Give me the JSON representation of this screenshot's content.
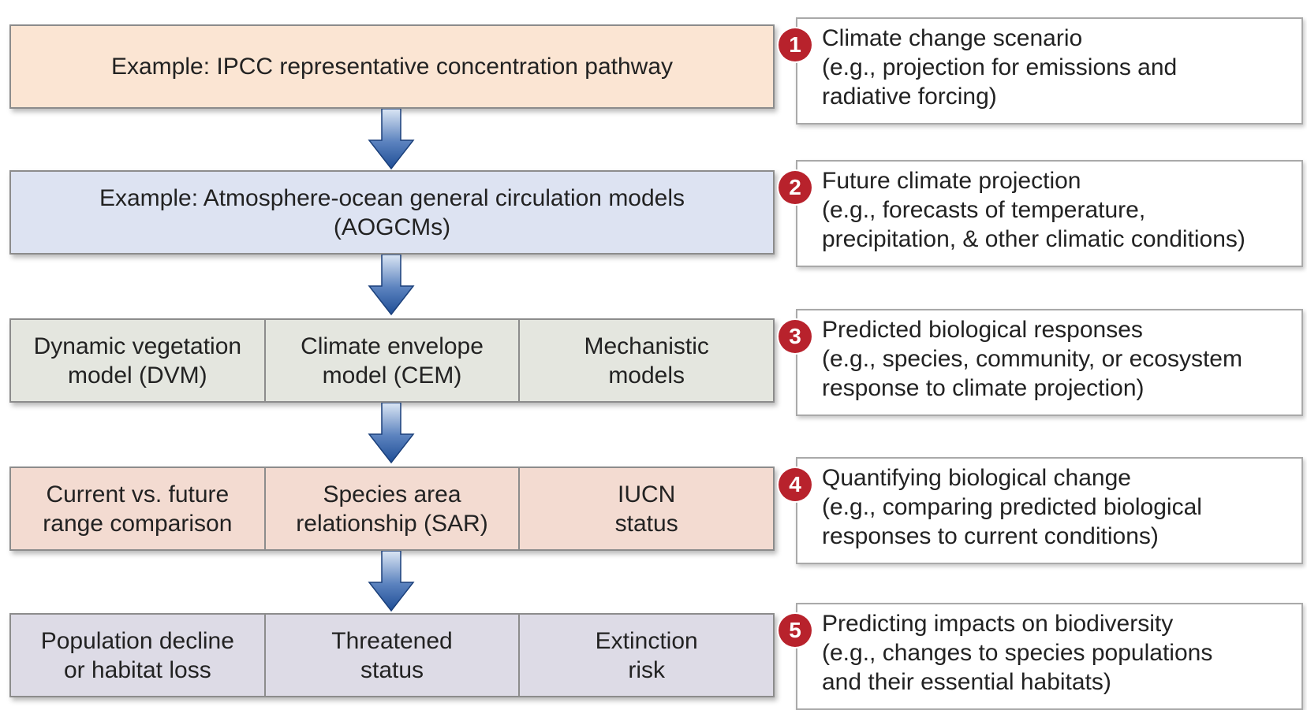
{
  "rows": [
    {
      "color": "#fbe5d3",
      "cells": [
        "Example: IPCC representative concentration pathway"
      ]
    },
    {
      "color": "#dde3f2",
      "cells": [
        "Example: Atmosphere-ocean general circulation models\n(AOGCMs)"
      ]
    },
    {
      "color": "#e4e6df",
      "cells": [
        "Dynamic vegetation\nmodel (DVM)",
        "Climate envelope\nmodel (CEM)",
        "Mechanistic\nmodels"
      ]
    },
    {
      "color": "#f3dbd1",
      "cells": [
        "Current vs. future\nrange comparison",
        "Species area\nrelationship (SAR)",
        "IUCN\nstatus"
      ]
    },
    {
      "color": "#dddbe6",
      "cells": [
        "Population decline\nor habitat loss",
        "Threatened\nstatus",
        "Extinction\nrisk"
      ]
    }
  ],
  "steps": [
    {
      "number": "1",
      "text": "Climate change scenario\n(e.g., projection for emissions and\nradiative forcing)"
    },
    {
      "number": "2",
      "text": "Future climate projection\n(e.g., forecasts of temperature,\nprecipitation, & other climatic conditions)"
    },
    {
      "number": "3",
      "text": "Predicted biological responses\n(e.g., species, community, or ecosystem\nresponse to climate projection)"
    },
    {
      "number": "4",
      "text": "Quantifying biological change\n(e.g., comparing predicted biological\nresponses to current conditions)"
    },
    {
      "number": "5",
      "text": "Predicting impacts on biodiversity\n(e.g., changes to species populations\nand their essential habitats)"
    }
  ],
  "colors": {
    "badge": "#b8222c",
    "arrow_dark": "#1f4e96",
    "arrow_light": "#dbe6f4"
  }
}
